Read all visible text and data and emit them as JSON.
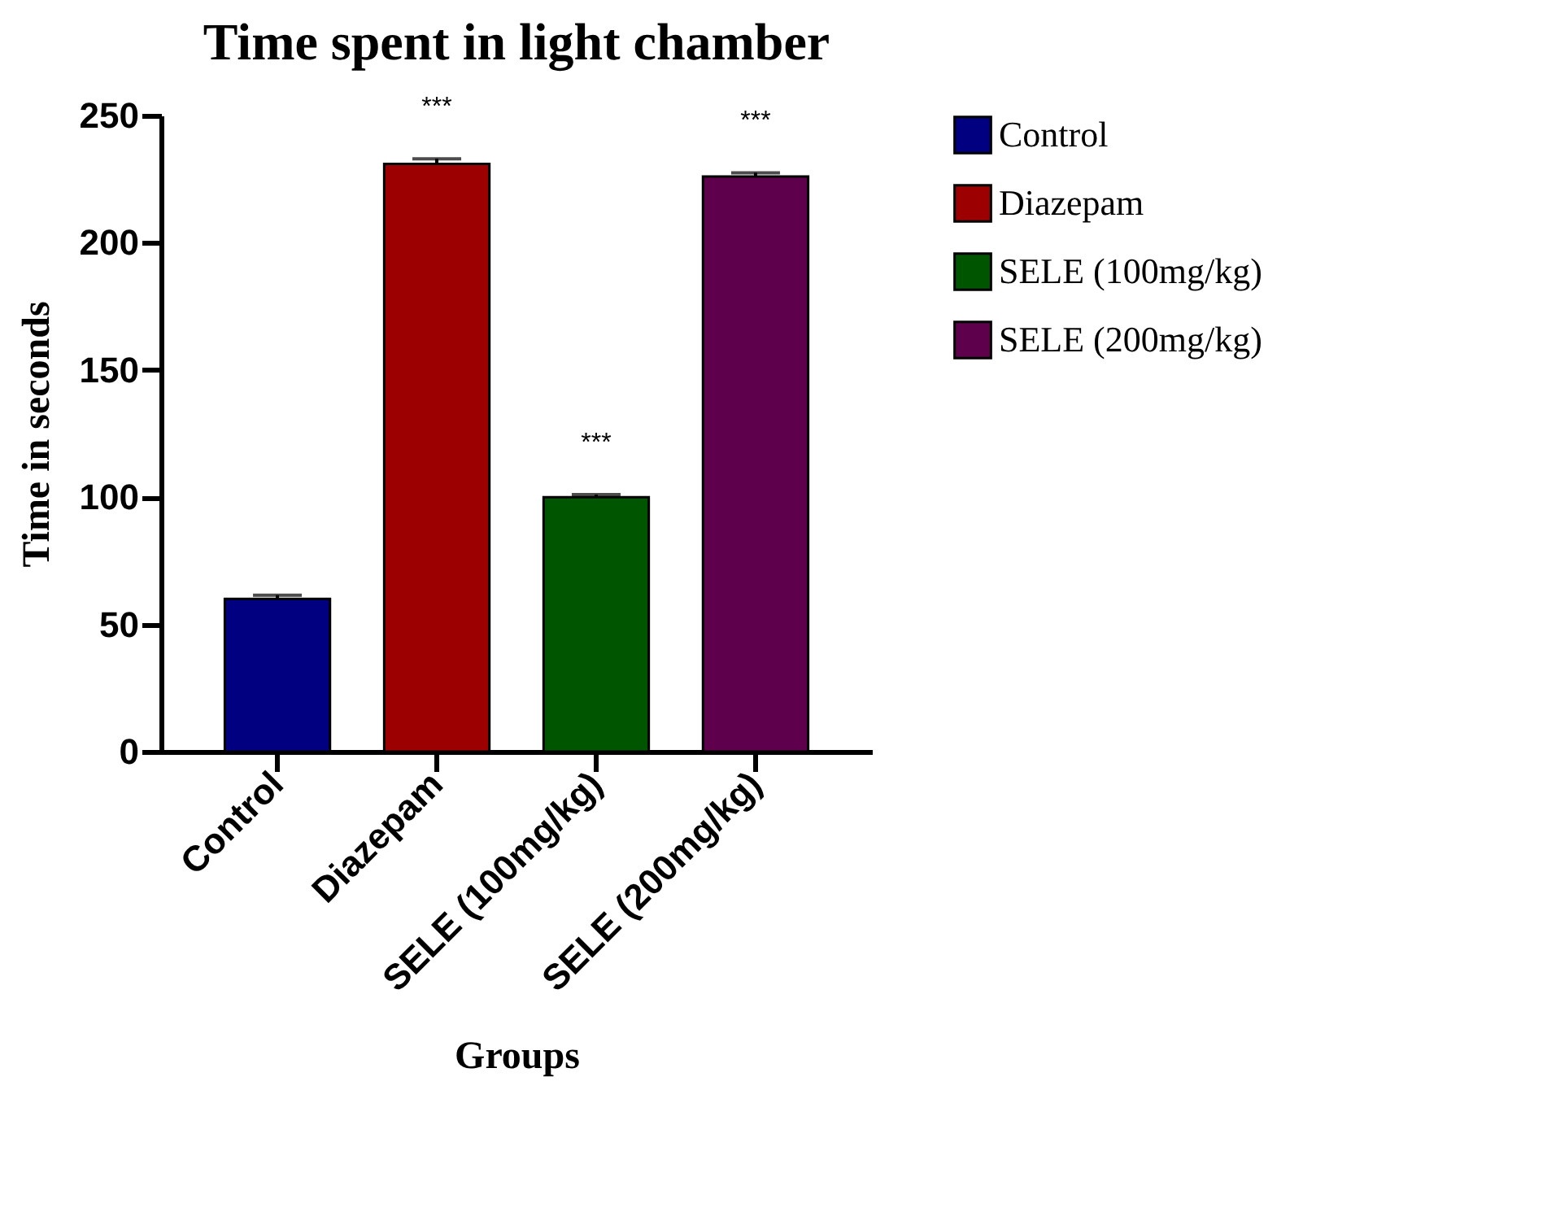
{
  "chart_data": {
    "type": "bar",
    "title": "Time spent in light chamber",
    "xlabel": "Groups",
    "ylabel": "Time in seconds",
    "categories": [
      "Control",
      "Diazepam",
      "SELE (100mg/kg)",
      "SELE (200mg/kg)"
    ],
    "series": [
      {
        "name": "Control",
        "color": "#000080",
        "values": [
          60,
          null,
          null,
          null
        ],
        "errors": [
          1.5,
          null,
          null,
          null
        ]
      },
      {
        "name": "Diazepam",
        "color": "#9c0000",
        "values": [
          null,
          231,
          null,
          null
        ],
        "errors": [
          null,
          2,
          null,
          null
        ]
      },
      {
        "name": "SELE (100mg/kg)",
        "color": "#005500",
        "values": [
          null,
          null,
          100,
          null
        ],
        "errors": [
          null,
          null,
          1,
          null
        ]
      },
      {
        "name": "SELE (200mg/kg)",
        "color": "#5f004c",
        "values": [
          null,
          null,
          null,
          226
        ],
        "errors": [
          null,
          null,
          null,
          1.5
        ]
      }
    ],
    "ylim": [
      0,
      250
    ],
    "yticks": [
      0,
      50,
      100,
      150,
      200,
      250
    ],
    "grid": false,
    "legend": "right",
    "annotations": [
      "***",
      "***",
      "***"
    ]
  }
}
